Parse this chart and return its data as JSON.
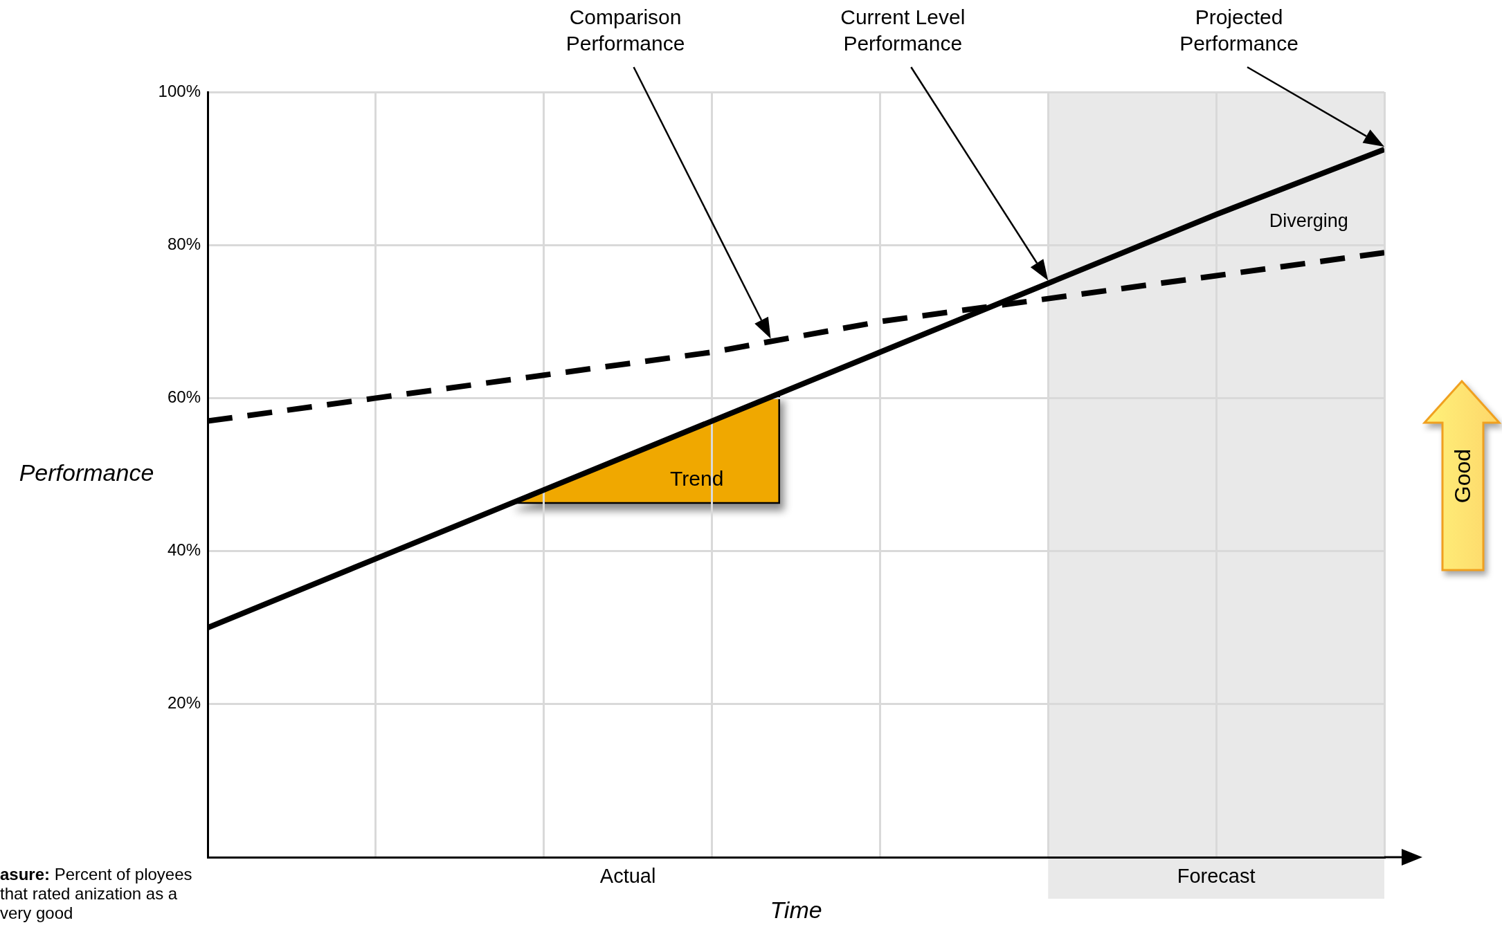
{
  "chart_data": {
    "type": "line",
    "xlabel": "Time",
    "ylabel": "Performance",
    "categories": [
      null,
      null,
      null,
      null,
      null,
      null,
      null,
      null
    ],
    "series": [
      {
        "color": "#000000",
        "values": [
          30,
          39,
          48,
          57,
          66,
          75,
          84,
          92.5
        ],
        "line_style": "solid"
      },
      {
        "color": "#000000",
        "values": [
          57,
          60,
          63,
          66,
          70,
          73,
          76,
          79
        ],
        "line_style": "dashed"
      }
    ],
    "ylim": [
      0,
      100
    ],
    "yticks": [
      {
        "value": 20,
        "label": "20%"
      },
      {
        "value": 40,
        "label": "40%"
      },
      {
        "value": 60,
        "label": "60%"
      },
      {
        "value": 80,
        "label": "80%"
      },
      {
        "value": 100,
        "label": "100%"
      }
    ],
    "grid": true,
    "marker": "none",
    "annotations": [
      "Comparison Performance",
      "Current Level Performance",
      "Projected Performance",
      "Diverging",
      "Trend",
      "Good",
      "asure: Percent of ployees that rated anization as a very good",
      "Actual",
      "Forecast"
    ]
  }
}
